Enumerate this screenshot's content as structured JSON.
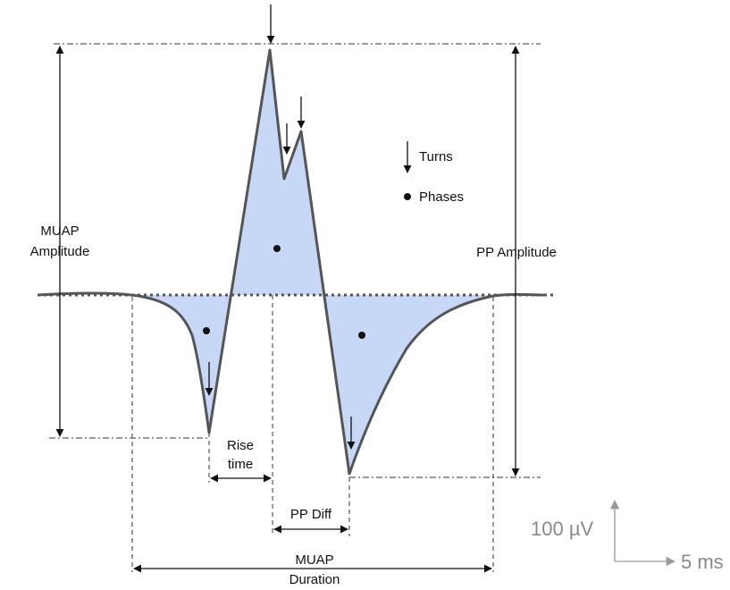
{
  "labels": {
    "muap_amplitude_line1": "MUAP",
    "muap_amplitude_line2": "Amplitude",
    "pp_amplitude": "PP Amplitude",
    "rise_time_line1": "Rise",
    "rise_time_line2": "time",
    "pp_diff": "PP Diff",
    "muap_duration_line1": "MUAP",
    "muap_duration_line2": "Duration"
  },
  "legend": {
    "turns": "Turns",
    "phases": "Phases"
  },
  "scale": {
    "voltage": "100 µV",
    "time": "5 ms"
  },
  "colors": {
    "fill": "#c6d8f5",
    "waveform": "#555555",
    "baseline": "#555555",
    "guides": "#333333",
    "scale": "#9a9a9a"
  }
}
